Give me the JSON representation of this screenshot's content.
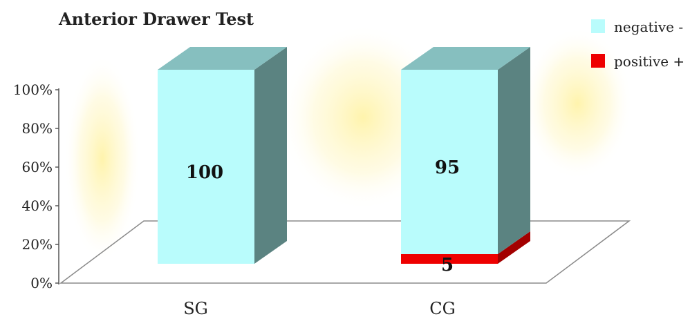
{
  "chart_data": {
    "type": "bar",
    "stacked": true,
    "three_d": true,
    "title": "Anterior Drawer Test",
    "categories": [
      "SG",
      "CG"
    ],
    "series": [
      {
        "name": "negative -",
        "values": [
          100,
          95
        ],
        "color": "#b9fcfc"
      },
      {
        "name": "positive +",
        "values": [
          0,
          5
        ],
        "color": "#ee0000"
      }
    ],
    "data_labels": [
      {
        "category": "SG",
        "series": "negative -",
        "text": "100"
      },
      {
        "category": "CG",
        "series": "negative -",
        "text": "95"
      },
      {
        "category": "CG",
        "series": "positive +",
        "text": "5"
      }
    ],
    "y_ticks": [
      "0%",
      "20%",
      "40%",
      "60%",
      "80%",
      "100%"
    ],
    "ylim": [
      0,
      100
    ],
    "legend_position": "top-right",
    "grid": false,
    "colors": {
      "top_face": "#86bfbf",
      "side_face": "#5b8381",
      "positive_side": "#a30000",
      "glow": "#fff3a8"
    }
  }
}
